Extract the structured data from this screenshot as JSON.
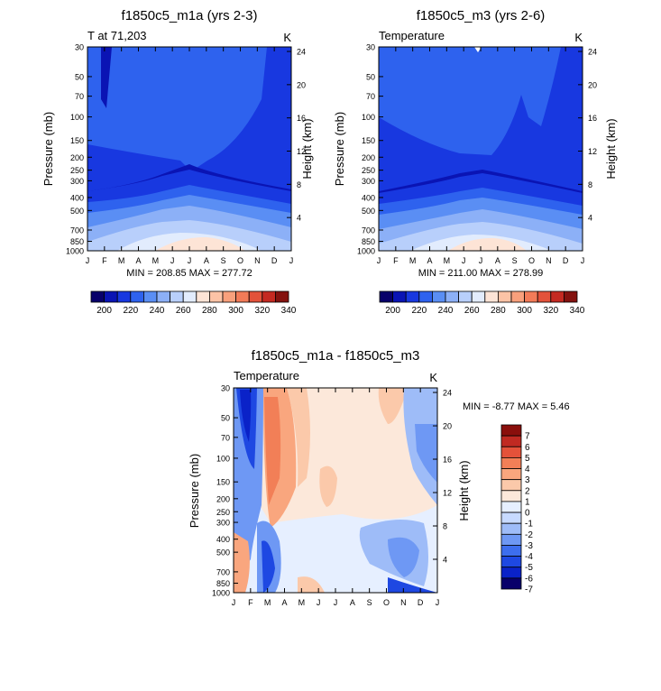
{
  "chart_data": [
    {
      "type": "heatmap",
      "title": "f1850c5_m1a (yrs 2-3)",
      "left_label": "T at 71,203",
      "right_label": "K",
      "ylabel": "Pressure (mb)",
      "y2label": "Height (km)",
      "months": [
        "J",
        "F",
        "M",
        "A",
        "M",
        "J",
        "J",
        "A",
        "S",
        "O",
        "N",
        "D",
        "J"
      ],
      "pressure_ticks": [
        "30",
        "50",
        "70",
        "100",
        "150",
        "200",
        "250",
        "300",
        "400",
        "500",
        "700",
        "850",
        "1000"
      ],
      "height_ticks": [
        "24",
        "20",
        "16",
        "12",
        "8",
        "4"
      ],
      "stats": "MIN = 208.85 MAX = 277.72",
      "colorbar_labels": [
        "200",
        "220",
        "240",
        "260",
        "280",
        "300",
        "320",
        "340"
      ],
      "min": 208.85,
      "max": 277.72
    },
    {
      "type": "heatmap",
      "title": "f1850c5_m3 (yrs 2-6)",
      "left_label": "Temperature",
      "right_label": "K",
      "ylabel": "Pressure (mb)",
      "y2label": "Height (km)",
      "months": [
        "J",
        "F",
        "M",
        "A",
        "M",
        "J",
        "J",
        "A",
        "S",
        "O",
        "N",
        "D",
        "J"
      ],
      "pressure_ticks": [
        "30",
        "50",
        "70",
        "100",
        "150",
        "200",
        "250",
        "300",
        "400",
        "500",
        "700",
        "850",
        "1000"
      ],
      "height_ticks": [
        "24",
        "20",
        "16",
        "12",
        "8",
        "4"
      ],
      "stats": "MIN = 211.00 MAX = 278.99",
      "colorbar_labels": [
        "200",
        "220",
        "240",
        "260",
        "280",
        "300",
        "320",
        "340"
      ],
      "min": 211.0,
      "max": 278.99
    },
    {
      "type": "heatmap",
      "title": "f1850c5_m1a - f1850c5_m3",
      "left_label": "Temperature",
      "right_label": "K",
      "ylabel": "Pressure (mb)",
      "y2label": "Height (km)",
      "months": [
        "J",
        "F",
        "M",
        "A",
        "M",
        "J",
        "J",
        "A",
        "S",
        "O",
        "N",
        "D",
        "J"
      ],
      "pressure_ticks": [
        "30",
        "50",
        "70",
        "100",
        "150",
        "200",
        "250",
        "300",
        "400",
        "500",
        "700",
        "850",
        "1000"
      ],
      "height_ticks": [
        "24",
        "20",
        "16",
        "12",
        "8",
        "4"
      ],
      "stats": "MIN =  -8.77 MAX =   5.46",
      "colorbar_labels": [
        "7",
        "6",
        "5",
        "4",
        "3",
        "2",
        "1",
        "0",
        "-1",
        "-2",
        "-3",
        "-4",
        "-5",
        "-6",
        "-7"
      ],
      "min": -8.77,
      "max": 5.46
    }
  ],
  "palettes": {
    "temperature": [
      "#08006a",
      "#0a14b4",
      "#1838e0",
      "#2e62ee",
      "#5a8ef4",
      "#8cb0f7",
      "#b8cffb",
      "#e2ecfd",
      "#fde4d6",
      "#fcc3a6",
      "#f8a07c",
      "#f27b58",
      "#e3523a",
      "#c42a22",
      "#84120f"
    ],
    "difference": [
      "#08006a",
      "#0a22c8",
      "#1e48e2",
      "#3d6eee",
      "#6e98f4",
      "#9ebcf8",
      "#c7daff",
      "#e6efff",
      "#fce8da",
      "#fbc9aa",
      "#f9a67e",
      "#f27f57",
      "#e4523a",
      "#c02a22",
      "#8a0f0c"
    ]
  }
}
